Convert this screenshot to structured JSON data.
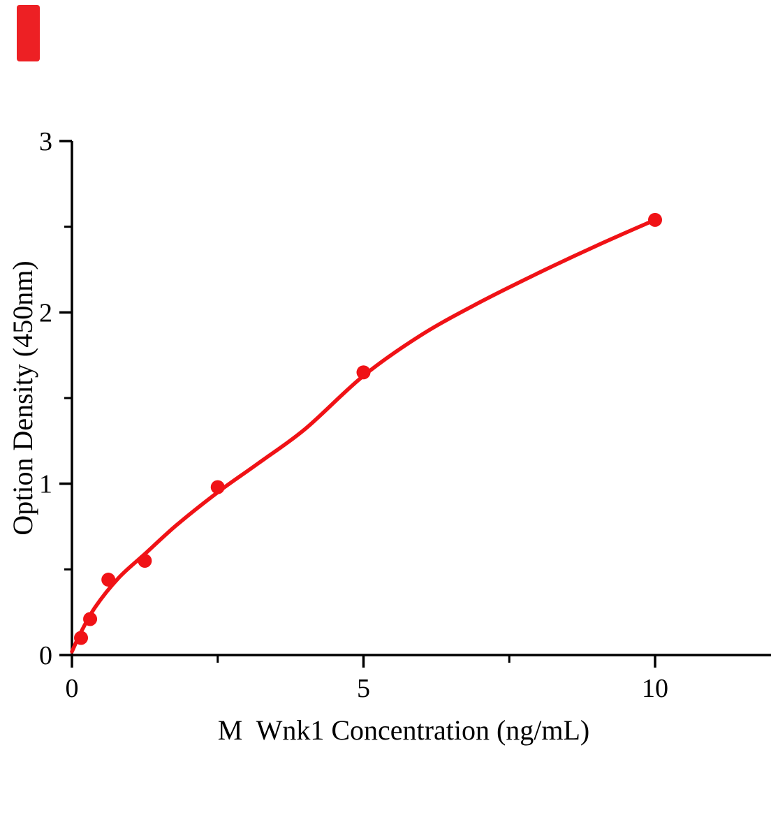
{
  "figure": {
    "background": "#ffffff",
    "axis_color": "#000000",
    "text_color": "#000000"
  },
  "corner_mark": {
    "color": "#ed2024"
  },
  "chart_data": {
    "type": "scatter",
    "title": "",
    "xlabel": "M  Wnk1 Concentration (ng/mL)",
    "ylabel": "Option Density (450nm)",
    "xlim": [
      0,
      12
    ],
    "ylim": [
      0,
      3
    ],
    "x_major_ticks": [
      0,
      5,
      10
    ],
    "x_minor_ticks": [
      2.5,
      7.5
    ],
    "y_major_ticks": [
      0,
      1,
      2,
      3
    ],
    "y_minor_ticks": [
      0.5,
      1.5,
      2.5
    ],
    "grid": false,
    "legend": false,
    "series": [
      {
        "name": "standard-points",
        "type": "scatter",
        "color": "#f01216",
        "marker": "circle",
        "x": [
          0.156,
          0.312,
          0.625,
          1.25,
          2.5,
          5,
          10
        ],
        "y": [
          0.1,
          0.21,
          0.44,
          0.55,
          0.98,
          1.65,
          2.54
        ]
      },
      {
        "name": "fitted-curve",
        "type": "line",
        "color": "#f01216",
        "x": [
          0,
          0.15,
          0.4,
          0.8,
          1.25,
          1.8,
          2.5,
          3.2,
          4,
          5,
          6,
          7,
          8,
          9,
          10
        ],
        "y": [
          0.02,
          0.13,
          0.28,
          0.45,
          0.59,
          0.76,
          0.95,
          1.12,
          1.32,
          1.63,
          1.87,
          2.06,
          2.23,
          2.39,
          2.54
        ]
      }
    ]
  }
}
